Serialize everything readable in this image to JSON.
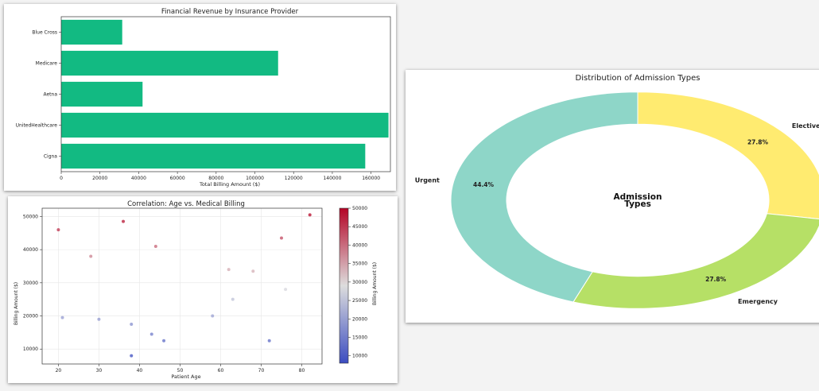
{
  "charts": {
    "bar": {
      "type": "bar",
      "orientation": "horizontal",
      "title": "Financial Revenue by Insurance Provider",
      "xlabel": "Total Billing Amount ($)",
      "ylabel": "",
      "categories": [
        "Blue Cross",
        "Medicare",
        "Aetna",
        "UnitedHealthcare",
        "Cigna"
      ],
      "values": [
        31500,
        112000,
        42000,
        169000,
        157000
      ],
      "xlim": [
        0,
        170000
      ],
      "xticks": [
        "0",
        "20000",
        "40000",
        "60000",
        "80000",
        "100000",
        "120000",
        "140000",
        "160000"
      ],
      "color": "#12ba82"
    },
    "scatter": {
      "type": "scatter",
      "title": "Correlation: Age vs. Medical Billing",
      "xlabel": "Patient Age",
      "ylabel": "Billing Amount ($)",
      "xlim": [
        16,
        85
      ],
      "ylim": [
        5500,
        52500
      ],
      "xticks": [
        "20",
        "30",
        "40",
        "50",
        "60",
        "70",
        "80"
      ],
      "yticks": [
        "10000",
        "20000",
        "30000",
        "40000",
        "50000"
      ],
      "colorbar_label": "Billing Amount ($)",
      "colorbar_range": [
        8000,
        50000
      ],
      "colorbar_ticks": [
        "10000",
        "15000",
        "20000",
        "25000",
        "30000",
        "35000",
        "40000",
        "45000",
        "50000"
      ],
      "colormap": "coolwarm",
      "points": [
        {
          "x": 20,
          "y": 46000
        },
        {
          "x": 21,
          "y": 19500
        },
        {
          "x": 28,
          "y": 38000
        },
        {
          "x": 30,
          "y": 19000
        },
        {
          "x": 36,
          "y": 48500
        },
        {
          "x": 38,
          "y": 17500
        },
        {
          "x": 38,
          "y": 8000
        },
        {
          "x": 43,
          "y": 14500
        },
        {
          "x": 44,
          "y": 41000
        },
        {
          "x": 46,
          "y": 12500
        },
        {
          "x": 58,
          "y": 20000
        },
        {
          "x": 62,
          "y": 34000
        },
        {
          "x": 63,
          "y": 25000
        },
        {
          "x": 68,
          "y": 33500
        },
        {
          "x": 72,
          "y": 12500
        },
        {
          "x": 75,
          "y": 43500
        },
        {
          "x": 76,
          "y": 28000
        },
        {
          "x": 82,
          "y": 50500
        }
      ]
    },
    "donut": {
      "type": "pie",
      "title": "Distribution of Admission Types",
      "center_label": [
        "Admission",
        "Types"
      ],
      "slices": [
        {
          "label": "Elective",
          "value": 27.8,
          "pct": "27.8%",
          "color": "#ffeb70"
        },
        {
          "label": "Emergency",
          "value": 27.8,
          "pct": "27.8%",
          "color": "#b6e066"
        },
        {
          "label": "Urgent",
          "value": 44.4,
          "pct": "44.4%",
          "color": "#8ed6c8"
        }
      ]
    }
  }
}
